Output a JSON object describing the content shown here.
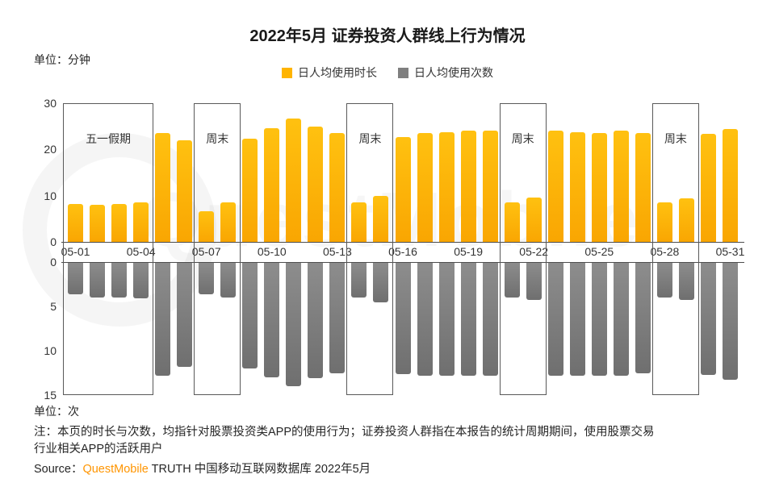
{
  "title": "2022年5月 证券投资人群线上行为情况",
  "unit_top": "单位：分钟",
  "unit_bottom": "单位：次",
  "legend": [
    {
      "label": "日人均使用时长",
      "color": "#FFB400"
    },
    {
      "label": "日人均使用次数",
      "color": "#7F7F7F"
    }
  ],
  "watermark": "QuestMobile",
  "note_line1": "注：本页的时长与次数，均指针对股票投资类APP的使用行为；证券投资人群指在本报告的统计周期期间，使用股票交易",
  "note_line2": "行业相关APP的活跃用户",
  "source": {
    "prefix": "Source：",
    "brand": "QuestMobile",
    "brand_color": "#FF9500",
    "suffix": " TRUTH 中国移动互联网数据库 2022年5月"
  },
  "chart_data": {
    "type": "bar",
    "title": "2022年5月 证券投资人群线上行为情况",
    "x_tick_labels": [
      "05-01",
      "05-04",
      "05-07",
      "05-10",
      "05-13",
      "05-16",
      "05-19",
      "05-22",
      "05-25",
      "05-28",
      "05-31"
    ],
    "dates": [
      "05-01",
      "05-02",
      "05-03",
      "05-04",
      "05-05",
      "05-06",
      "05-07",
      "05-08",
      "05-09",
      "05-10",
      "05-11",
      "05-12",
      "05-13",
      "05-14",
      "05-15",
      "05-16",
      "05-17",
      "05-18",
      "05-19",
      "05-20",
      "05-21",
      "05-22",
      "05-23",
      "05-24",
      "05-25",
      "05-26",
      "05-27",
      "05-28",
      "05-29",
      "05-30",
      "05-31"
    ],
    "grid": false,
    "legend_position": "top",
    "series": [
      {
        "name": "日人均使用时长",
        "unit": "分钟",
        "color": "#FFB400",
        "direction": "up",
        "ylim": [
          0,
          30
        ],
        "yticks": [
          0,
          10,
          20,
          30
        ],
        "values": [
          8.2,
          8.0,
          8.2,
          8.6,
          23.6,
          22.0,
          6.6,
          8.6,
          22.3,
          24.6,
          26.6,
          24.9,
          23.6,
          8.6,
          9.9,
          22.6,
          23.6,
          23.7,
          24.1,
          24.1,
          8.6,
          9.6,
          24.0,
          23.7,
          23.5,
          24.1,
          23.6,
          8.6,
          9.4,
          23.3,
          24.4
        ]
      },
      {
        "name": "日人均使用次数",
        "unit": "次",
        "color": "#7F7F7F",
        "direction": "down",
        "ylim": [
          0,
          15
        ],
        "yticks": [
          0,
          5,
          10,
          15
        ],
        "values": [
          3.6,
          4.0,
          4.0,
          4.1,
          12.8,
          11.8,
          3.6,
          4.0,
          12.0,
          13.0,
          14.0,
          13.1,
          12.5,
          4.0,
          4.5,
          12.6,
          12.8,
          12.8,
          12.8,
          12.8,
          4.0,
          4.3,
          12.8,
          12.8,
          12.8,
          12.8,
          12.5,
          4.0,
          4.3,
          12.7,
          13.3
        ]
      }
    ],
    "annotations": [
      {
        "label": "五一假期",
        "start_date": "05-01",
        "end_date": "05-04"
      },
      {
        "label": "周末",
        "start_date": "05-07",
        "end_date": "05-08"
      },
      {
        "label": "周末",
        "start_date": "05-14",
        "end_date": "05-15"
      },
      {
        "label": "周末",
        "start_date": "05-21",
        "end_date": "05-22"
      },
      {
        "label": "周末",
        "start_date": "05-28",
        "end_date": "05-29"
      }
    ]
  }
}
